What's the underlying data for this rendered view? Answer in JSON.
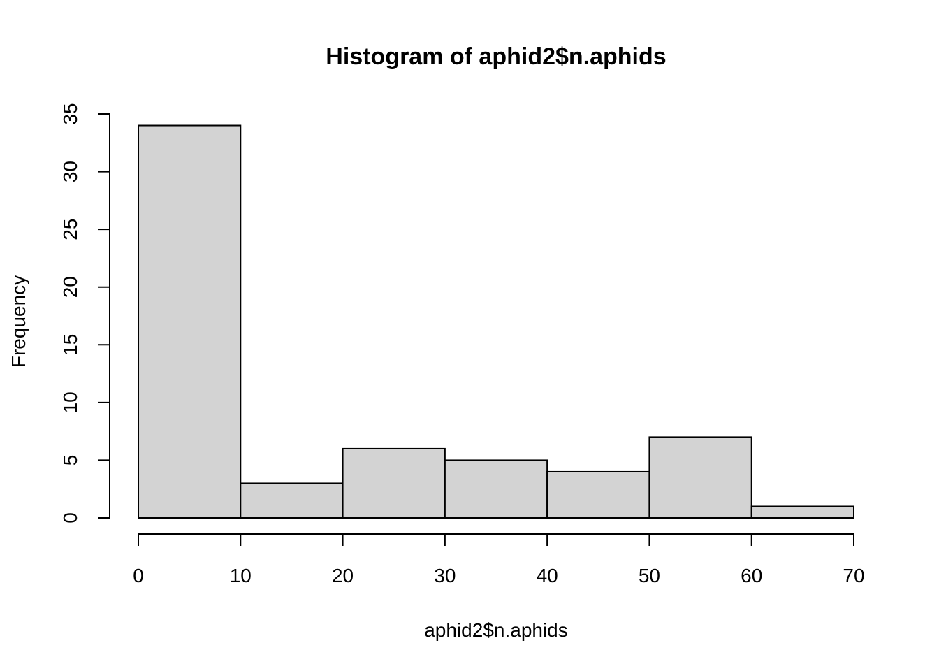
{
  "chart_data": {
    "type": "bar",
    "subtype": "histogram",
    "title": "Histogram of aphid2$n.aphids",
    "xlabel": "aphid2$n.aphids",
    "ylabel": "Frequency",
    "bin_edges": [
      0,
      10,
      20,
      30,
      40,
      50,
      60,
      70
    ],
    "values": [
      34,
      3,
      6,
      5,
      4,
      7,
      1
    ],
    "xlim": [
      0,
      70
    ],
    "ylim": [
      0,
      35
    ],
    "x_ticks": [
      "0",
      "10",
      "20",
      "30",
      "40",
      "50",
      "60",
      "70"
    ],
    "y_ticks": [
      "0",
      "5",
      "10",
      "15",
      "20",
      "25",
      "30",
      "35"
    ],
    "grid": false,
    "bar_fill": "#d3d3d3",
    "bar_stroke": "#000000"
  }
}
